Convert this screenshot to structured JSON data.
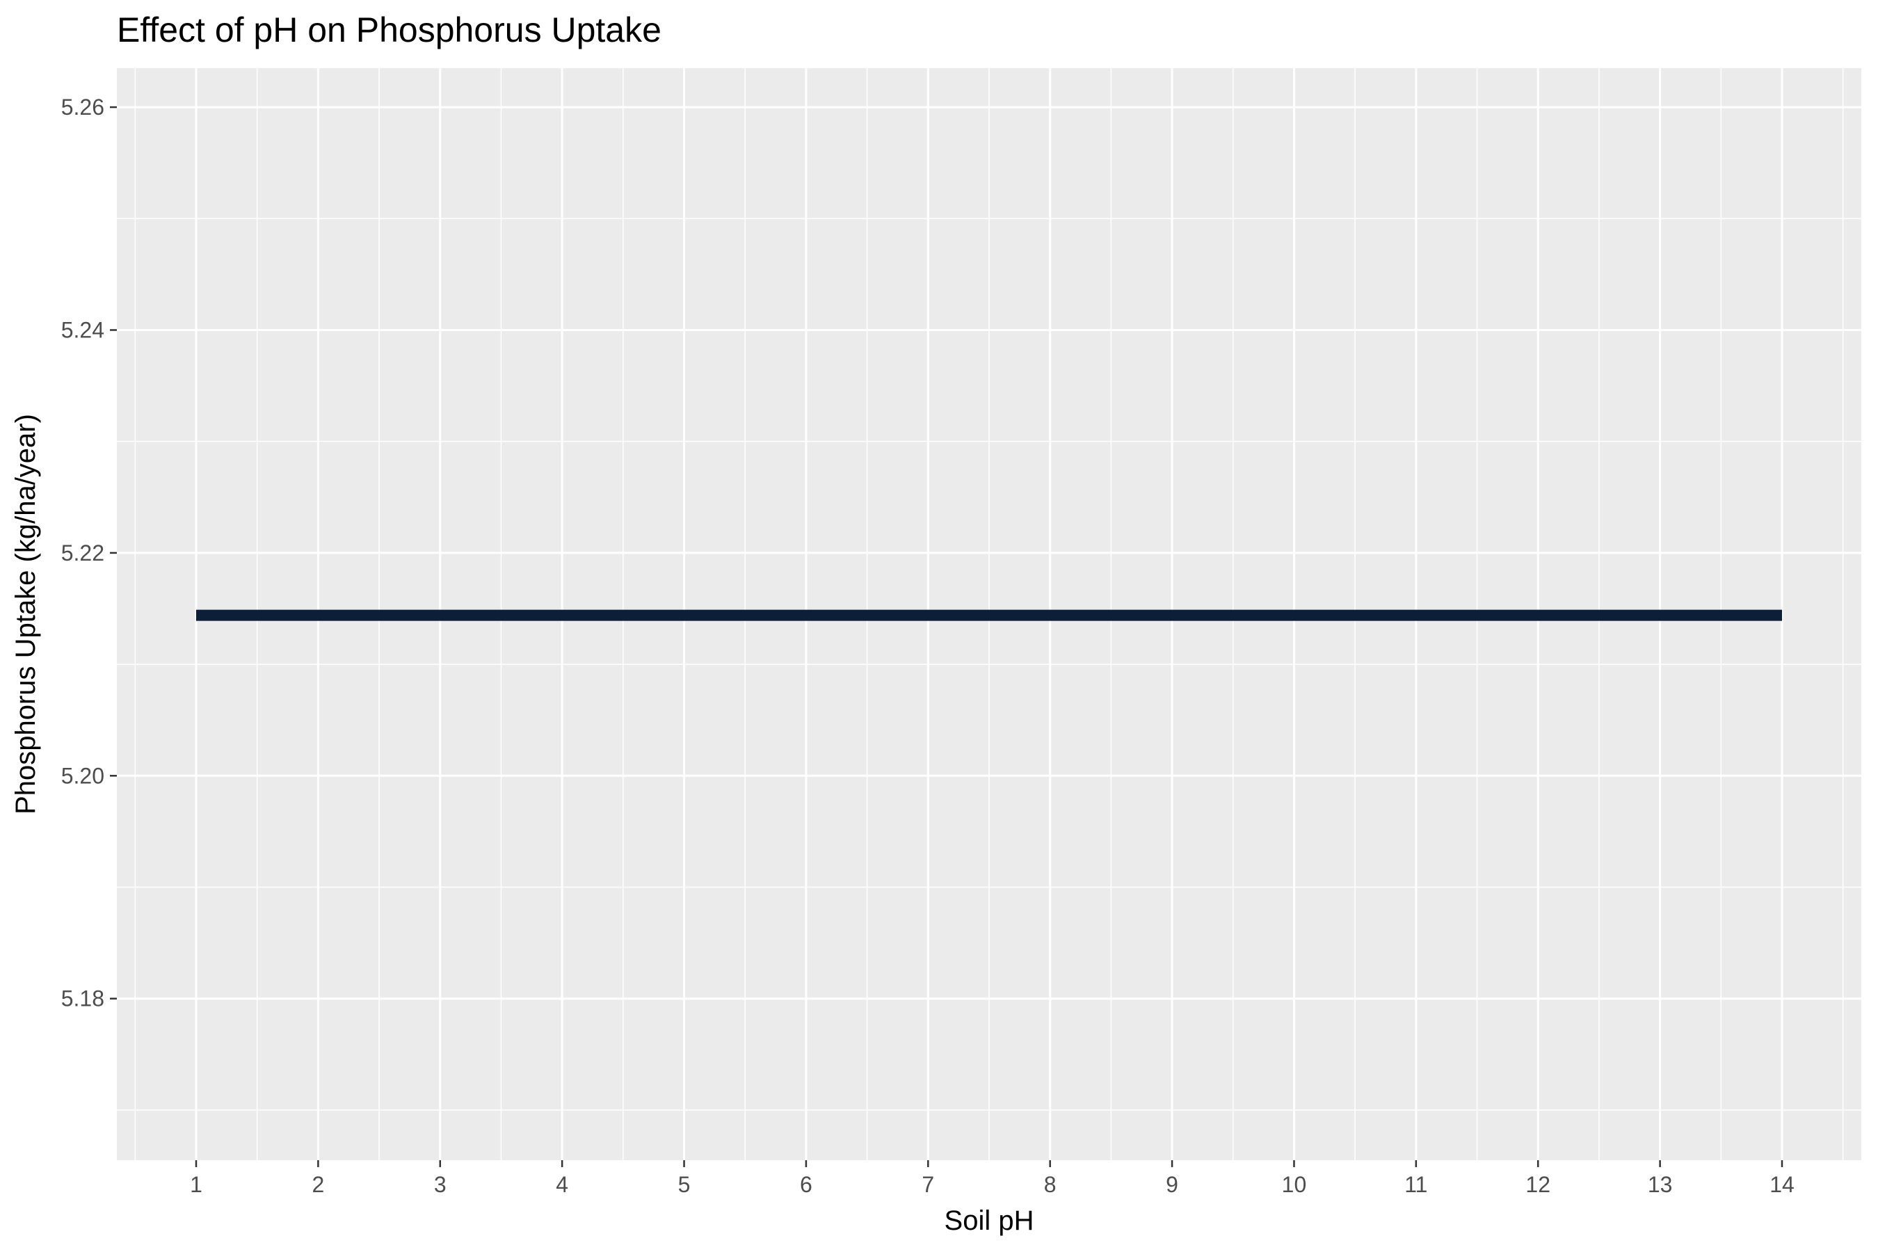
{
  "chart_data": {
    "type": "line",
    "title": "Effect of pH on Phosphorus Uptake",
    "xlabel": "Soil pH",
    "ylabel": "Phosphorus Uptake (kg/ha/year)",
    "xlim": [
      0.35,
      14.65
    ],
    "ylim": [
      5.1655,
      5.2635
    ],
    "x_ticks": [
      1,
      2,
      3,
      4,
      5,
      6,
      7,
      8,
      9,
      10,
      11,
      12,
      13,
      14
    ],
    "y_ticks": [
      5.18,
      5.2,
      5.22,
      5.24,
      5.26
    ],
    "x_tick_labels": [
      "1",
      "2",
      "3",
      "4",
      "5",
      "6",
      "7",
      "8",
      "9",
      "10",
      "11",
      "12",
      "13",
      "14"
    ],
    "y_tick_labels": [
      "5.18",
      "5.20",
      "5.22",
      "5.24",
      "5.26"
    ],
    "grid": true,
    "legend": "none",
    "series": [
      {
        "x": [
          1,
          2,
          3,
          4,
          5,
          6,
          7,
          8,
          9,
          10,
          11,
          12,
          13,
          14
        ],
        "y": [
          5.2144,
          5.2144,
          5.2144,
          5.2144,
          5.2144,
          5.2144,
          5.2144,
          5.2144,
          5.2144,
          5.2144,
          5.2144,
          5.2144,
          5.2144,
          5.2144
        ]
      }
    ],
    "colors": {
      "panel": "#ebebeb",
      "grid": "#ffffff",
      "line": "#0b2038",
      "tick_text": "#4d4d4d",
      "tick_mark": "#333333"
    }
  }
}
